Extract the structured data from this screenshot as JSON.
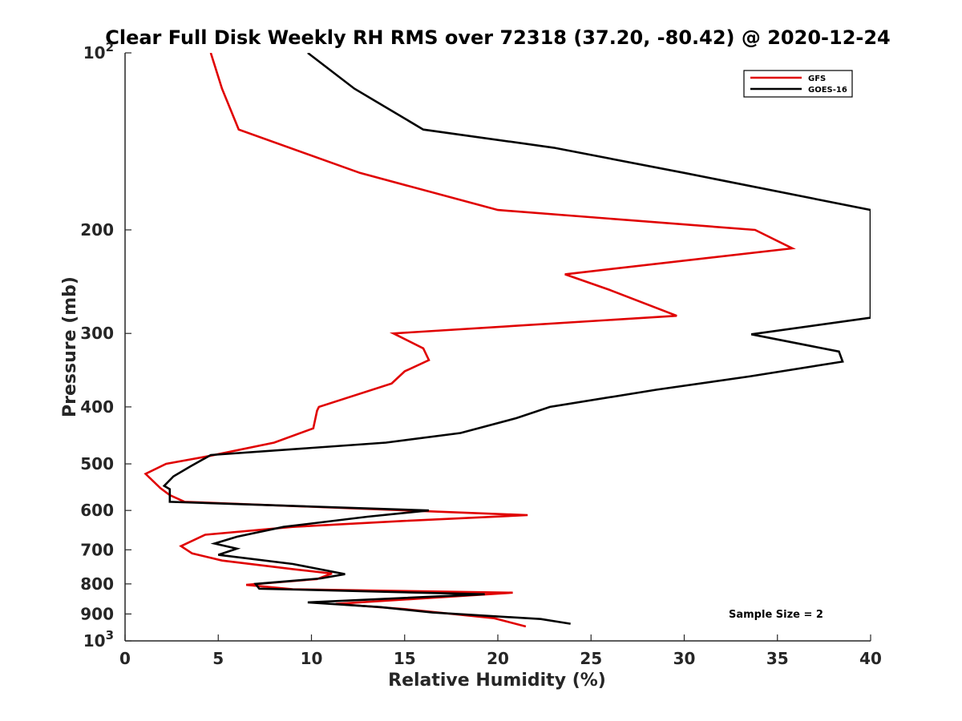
{
  "chart_data": {
    "type": "line",
    "title": "Clear Full Disk Weekly RH RMS over 72318 (37.20, -80.42) @ 2020-12-24",
    "xlabel": "Relative Humidity (%)",
    "ylabel": "Pressure (mb)",
    "xlim": [
      0,
      40
    ],
    "ylim": [
      100,
      1000
    ],
    "yscale": "log",
    "y_reversed": true,
    "x_ticks": [
      0,
      5,
      10,
      15,
      20,
      25,
      30,
      35,
      40
    ],
    "x_tick_labels": [
      "0",
      "5",
      "10",
      "15",
      "20",
      "25",
      "30",
      "35",
      "40"
    ],
    "y_ticks": [
      100,
      200,
      300,
      400,
      500,
      600,
      700,
      800,
      900,
      1000
    ],
    "y_tick_labels": [
      {
        "base": "10",
        "exp": "2"
      },
      {
        "base": "200",
        "exp": ""
      },
      {
        "base": "300",
        "exp": ""
      },
      {
        "base": "400",
        "exp": ""
      },
      {
        "base": "500",
        "exp": ""
      },
      {
        "base": "600",
        "exp": ""
      },
      {
        "base": "700",
        "exp": ""
      },
      {
        "base": "800",
        "exp": ""
      },
      {
        "base": "900",
        "exp": ""
      },
      {
        "base": "10",
        "exp": "3"
      }
    ],
    "grid": false,
    "legend_position": "top-right",
    "annotation": "Sample Size = 2",
    "series": [
      {
        "name": "GFS",
        "color": "#e00000",
        "points": [
          [
            4.6,
            100
          ],
          [
            5.2,
            115
          ],
          [
            6.1,
            135
          ],
          [
            12.6,
            160
          ],
          [
            20.0,
            185
          ],
          [
            33.8,
            200
          ],
          [
            35.8,
            215
          ],
          [
            23.6,
            238
          ],
          [
            26.0,
            253
          ],
          [
            29.6,
            280
          ],
          [
            14.4,
            300
          ],
          [
            16.0,
            318
          ],
          [
            16.3,
            333
          ],
          [
            15.0,
            348
          ],
          [
            14.3,
            365
          ],
          [
            10.4,
            400
          ],
          [
            10.3,
            406
          ],
          [
            10.1,
            435
          ],
          [
            8.0,
            460
          ],
          [
            4.5,
            485
          ],
          [
            2.2,
            500
          ],
          [
            1.1,
            520
          ],
          [
            1.9,
            550
          ],
          [
            2.4,
            565
          ],
          [
            3.2,
            580
          ],
          [
            21.6,
            611
          ],
          [
            15.0,
            625
          ],
          [
            9.0,
            640
          ],
          [
            4.3,
            660
          ],
          [
            3.0,
            690
          ],
          [
            3.6,
            710
          ],
          [
            5.2,
            730
          ],
          [
            9.0,
            755
          ],
          [
            11.1,
            768
          ],
          [
            10.3,
            785
          ],
          [
            6.5,
            803
          ],
          [
            9.0,
            817
          ],
          [
            20.8,
            828
          ],
          [
            11.3,
            865
          ],
          [
            15.0,
            883
          ],
          [
            19.8,
            915
          ],
          [
            21.5,
            945
          ]
        ]
      },
      {
        "name": "GOES-16",
        "color": "#000000",
        "points": [
          [
            9.8,
            100
          ],
          [
            12.3,
            115
          ],
          [
            16.0,
            135
          ],
          [
            23.0,
            145
          ],
          [
            30.0,
            160
          ],
          [
            40.0,
            185
          ],
          [
            40.0,
            282
          ],
          [
            33.6,
            301
          ],
          [
            38.3,
            322
          ],
          [
            38.5,
            335
          ],
          [
            33.5,
            355
          ],
          [
            28.5,
            374
          ],
          [
            22.8,
            400
          ],
          [
            21.0,
            418
          ],
          [
            18.0,
            443
          ],
          [
            14.0,
            460
          ],
          [
            4.6,
            483
          ],
          [
            3.5,
            505
          ],
          [
            2.6,
            525
          ],
          [
            2.1,
            545
          ],
          [
            2.4,
            552
          ],
          [
            2.4,
            580
          ],
          [
            16.3,
            600
          ],
          [
            13.0,
            615
          ],
          [
            8.5,
            640
          ],
          [
            6.0,
            665
          ],
          [
            4.8,
            683
          ],
          [
            6.0,
            697
          ],
          [
            5.0,
            714
          ],
          [
            9.0,
            740
          ],
          [
            11.8,
            770
          ],
          [
            10.5,
            783
          ],
          [
            7.0,
            800
          ],
          [
            7.2,
            815
          ],
          [
            19.3,
            833
          ],
          [
            9.8,
            860
          ],
          [
            13.7,
            876
          ],
          [
            16.5,
            895
          ],
          [
            22.3,
            918
          ],
          [
            23.9,
            935
          ]
        ]
      }
    ]
  }
}
